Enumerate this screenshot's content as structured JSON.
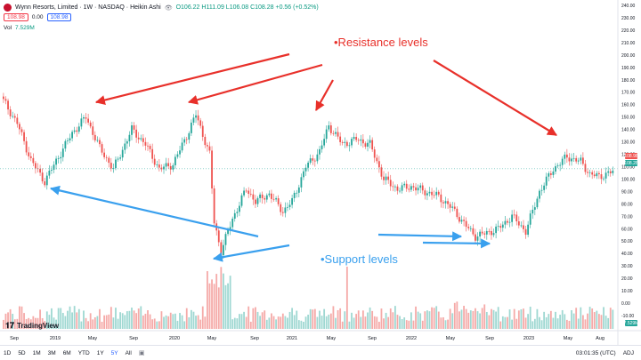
{
  "legend": {
    "symbol_name": "Wynn Resorts, Limited · 1W · NASDAQ · Heikin Ashi",
    "open": "O106.22",
    "high": "H111.09",
    "low": "L106.08",
    "close": "C108.28",
    "change": "+0.56 (+0.52%)",
    "sell_price": "108.98",
    "spread": "0.00",
    "buy_price": "108.98",
    "volume_label": "Vol",
    "volume_value": "7.529M"
  },
  "price_axis": {
    "ticks": [
      "240.00",
      "230.00",
      "220.00",
      "210.00",
      "200.00",
      "190.00",
      "180.00",
      "170.00",
      "160.00",
      "150.00",
      "140.00",
      "130.00",
      "120.00",
      "110.00",
      "100.00",
      "90.00",
      "80.00",
      "70.00",
      "60.00",
      "50.00",
      "40.00",
      "30.00",
      "20.00",
      "10.00",
      "0.00",
      "-10.00"
    ],
    "last_price_upper": "108.98",
    "last_price_lower": "108.28",
    "volume_tag": "7.529M"
  },
  "time_axis": {
    "labels": [
      "Sep",
      "2019",
      "May",
      "Sep",
      "2020",
      "May",
      "Sep",
      "2021",
      "May",
      "Sep",
      "2022",
      "May",
      "Sep",
      "2023",
      "May",
      "Aug"
    ]
  },
  "annotations": {
    "resistance": "•Resistance levels",
    "support": "•Support levels"
  },
  "branding": {
    "logo_text": "TradingView"
  },
  "bottom_toolbar": {
    "ranges": [
      "1D",
      "5D",
      "1M",
      "3M",
      "6M",
      "YTD",
      "1Y",
      "5Y",
      "All"
    ],
    "active_range": "5Y",
    "time": "03:01:35 (UTC)",
    "adj": "ADJ"
  },
  "colors": {
    "up": "#26a69a",
    "down": "#ef5350",
    "resistance_arrow": "#e8302a",
    "support_arrow": "#3aa0ee"
  },
  "chart_data": {
    "type": "candlestick",
    "x_labels": [
      "Sep",
      "2019",
      "May",
      "Sep",
      "2020",
      "May",
      "Sep",
      "2021",
      "May",
      "Sep",
      "2022",
      "May",
      "Sep",
      "2023",
      "May",
      "Aug"
    ],
    "ylim": [
      -10,
      240
    ],
    "anchors": [
      [
        0,
        163
      ],
      [
        6,
        145
      ],
      [
        12,
        115
      ],
      [
        18,
        98
      ],
      [
        24,
        118
      ],
      [
        30,
        137
      ],
      [
        36,
        150
      ],
      [
        42,
        125
      ],
      [
        48,
        108
      ],
      [
        56,
        140
      ],
      [
        62,
        128
      ],
      [
        68,
        108
      ],
      [
        74,
        112
      ],
      [
        80,
        135
      ],
      [
        84,
        152
      ],
      [
        90,
        120
      ],
      [
        92,
        65
      ],
      [
        95,
        42
      ],
      [
        100,
        68
      ],
      [
        106,
        92
      ],
      [
        110,
        82
      ],
      [
        116,
        88
      ],
      [
        122,
        74
      ],
      [
        126,
        82
      ],
      [
        132,
        110
      ],
      [
        138,
        122
      ],
      [
        142,
        143
      ],
      [
        148,
        128
      ],
      [
        154,
        132
      ],
      [
        160,
        128
      ],
      [
        166,
        100
      ],
      [
        172,
        92
      ],
      [
        178,
        94
      ],
      [
        184,
        90
      ],
      [
        190,
        86
      ],
      [
        196,
        76
      ],
      [
        202,
        62
      ],
      [
        206,
        54
      ],
      [
        210,
        56
      ],
      [
        216,
        60
      ],
      [
        222,
        70
      ],
      [
        228,
        58
      ],
      [
        234,
        90
      ],
      [
        240,
        108
      ],
      [
        246,
        118
      ],
      [
        252,
        114
      ],
      [
        256,
        104
      ],
      [
        260,
        102
      ],
      [
        266,
        106
      ]
    ]
  }
}
